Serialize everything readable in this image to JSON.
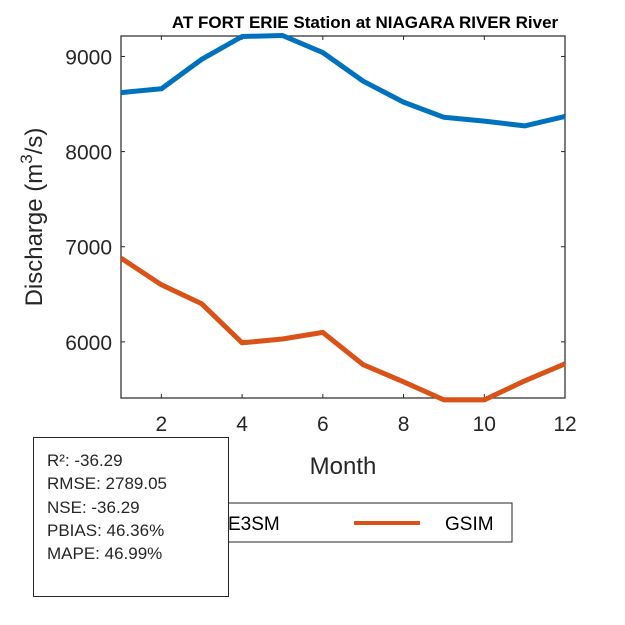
{
  "chart_data": {
    "type": "line",
    "title": "AT FORT ERIE  Station at  NIAGARA RIVER  River",
    "xlabel": "Month",
    "ylabel_main": "Discharge (m",
    "ylabel_sup": "3",
    "ylabel_end": "/s)",
    "xlim": [
      1,
      12
    ],
    "ylim": [
      5410,
      9215
    ],
    "xticks": [
      2,
      4,
      6,
      8,
      10,
      12
    ],
    "xtick_labels": [
      "2",
      "4",
      "6",
      "8",
      "10",
      "12"
    ],
    "yticks": [
      6000,
      7000,
      8000,
      9000
    ],
    "ytick_labels": [
      "6000",
      "7000",
      "8000",
      "9000"
    ],
    "grid": false,
    "x": [
      1,
      2,
      3,
      4,
      5,
      6,
      7,
      8,
      9,
      10,
      11,
      12
    ],
    "series": [
      {
        "name": "E3SM",
        "color": "#0072BD",
        "values": [
          8620,
          8660,
          8970,
          9210,
          9220,
          9040,
          8740,
          8520,
          8360,
          8320,
          8270,
          8370
        ]
      },
      {
        "name": "GSIM",
        "color": "#D95319",
        "values": [
          6880,
          6600,
          6400,
          5990,
          6030,
          6100,
          5760,
          5580,
          5390,
          5390,
          5590,
          5770
        ]
      }
    ],
    "legend": {
      "entries": [
        "E3SM",
        "GSIM"
      ],
      "placement": "bottom-outside"
    }
  },
  "stats": {
    "lines": [
      "R²: -36.29",
      "RMSE: 2789.05",
      "NSE: -36.29",
      "PBIAS: 46.36%",
      "MAPE: 46.99%"
    ]
  }
}
